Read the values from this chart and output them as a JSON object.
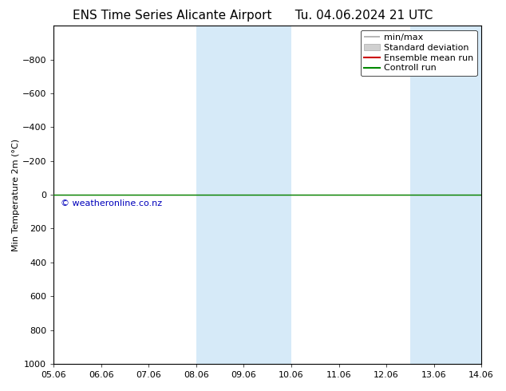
{
  "title_left": "ENS Time Series Alicante Airport",
  "title_right": "Tu. 04.06.2024 21 UTC",
  "ylabel": "Min Temperature 2m (°C)",
  "xlim_dates": [
    "05.06",
    "06.06",
    "07.06",
    "08.06",
    "09.06",
    "10.06",
    "11.06",
    "12.06",
    "13.06",
    "14.06"
  ],
  "ylim_top": -1000,
  "ylim_bottom": 1000,
  "yticks": [
    -800,
    -600,
    -400,
    -200,
    0,
    200,
    400,
    600,
    800,
    1000
  ],
  "bg_color": "#ffffff",
  "plot_bg_color": "#ffffff",
  "shaded_bands": [
    {
      "xmin": 3.0,
      "xmax": 4.0,
      "color": "#d6eaf8"
    },
    {
      "xmin": 4.0,
      "xmax": 5.0,
      "color": "#d6eaf8"
    },
    {
      "xmin": 7.5,
      "xmax": 8.5,
      "color": "#d6eaf8"
    },
    {
      "xmin": 8.5,
      "xmax": 9.5,
      "color": "#d6eaf8"
    }
  ],
  "control_run_y": 0.0,
  "control_run_color": "#008800",
  "ensemble_mean_color": "#cc0000",
  "minmax_color": "#aaaaaa",
  "stddev_color": "#cccccc",
  "watermark": "© weatheronline.co.nz",
  "watermark_color": "#0000bb",
  "watermark_fontsize": 8,
  "title_fontsize": 11,
  "axis_label_fontsize": 8,
  "tick_fontsize": 8,
  "legend_fontsize": 8
}
